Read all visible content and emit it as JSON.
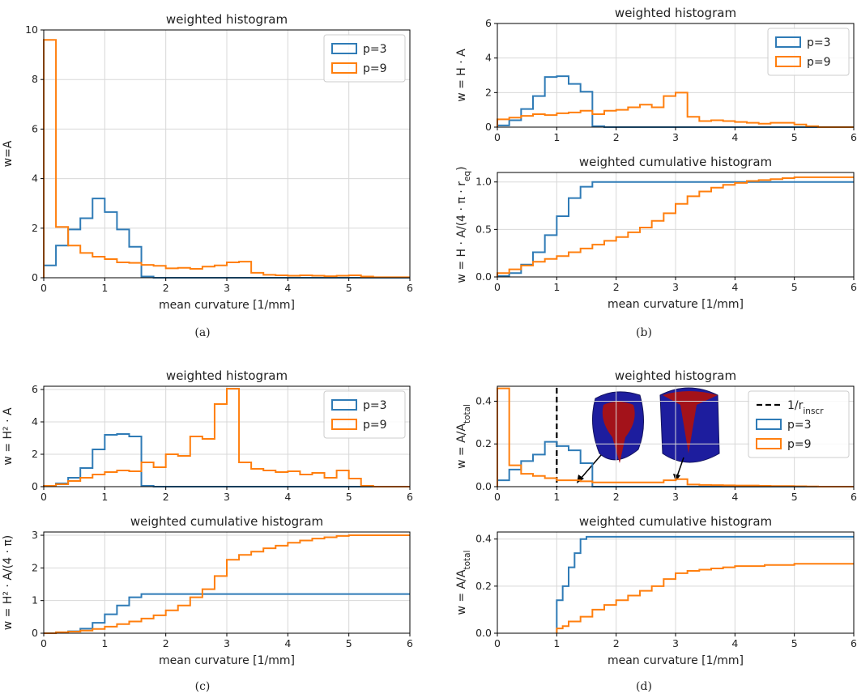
{
  "colors": {
    "p3": "#2f7bb6",
    "p9": "#ff7f0e",
    "grid": "#d8d8d8",
    "axis": "#000000"
  },
  "captions": [
    "(a)",
    "(b)",
    "(c)",
    "(d)"
  ],
  "chart_data": [
    {
      "id": "a",
      "type": "step",
      "title": "weighted histogram",
      "xlabel": "mean curvature [1/mm]",
      "ylabel": "w=A",
      "xlim": [
        0,
        6
      ],
      "ylim": [
        0,
        10
      ],
      "xticks": [
        0,
        1,
        2,
        3,
        4,
        5,
        6
      ],
      "yticks": [
        0,
        2,
        4,
        6,
        8,
        10
      ],
      "grid": true,
      "legend": "top-right",
      "series": [
        {
          "name": "p=3",
          "color": "p3",
          "edges": [
            0,
            0.2,
            0.4,
            0.6,
            0.8,
            1.0,
            1.2,
            1.4,
            1.6,
            1.8,
            6
          ],
          "values": [
            0.5,
            1.3,
            1.95,
            2.4,
            3.2,
            2.65,
            1.95,
            1.25,
            0.05,
            0
          ]
        },
        {
          "name": "p=9",
          "color": "p9",
          "edges": [
            0,
            0.2,
            0.4,
            0.6,
            0.8,
            1.0,
            1.2,
            1.4,
            1.6,
            1.8,
            2.0,
            2.2,
            2.4,
            2.6,
            2.8,
            3.0,
            3.2,
            3.4,
            3.6,
            3.8,
            4.0,
            4.2,
            4.4,
            4.6,
            4.8,
            5.0,
            5.2,
            5.4,
            6
          ],
          "values": [
            9.6,
            2.05,
            1.3,
            1.0,
            0.85,
            0.75,
            0.62,
            0.6,
            0.52,
            0.48,
            0.38,
            0.4,
            0.36,
            0.45,
            0.5,
            0.62,
            0.65,
            0.2,
            0.12,
            0.1,
            0.08,
            0.1,
            0.08,
            0.06,
            0.08,
            0.1,
            0.05,
            0.02
          ]
        }
      ]
    },
    {
      "id": "b1",
      "type": "step",
      "title": "weighted histogram",
      "xlabel": "",
      "ylabel": "w = H · A",
      "xlim": [
        0,
        6
      ],
      "ylim": [
        0,
        6
      ],
      "xticks": [
        0,
        1,
        2,
        3,
        4,
        5,
        6
      ],
      "yticks": [
        0,
        2,
        4,
        6
      ],
      "grid": true,
      "legend": "top-right",
      "series": [
        {
          "name": "p=3",
          "color": "p3",
          "edges": [
            0,
            0.2,
            0.4,
            0.6,
            0.8,
            1.0,
            1.2,
            1.4,
            1.6,
            1.8,
            6
          ],
          "values": [
            0.1,
            0.4,
            1.05,
            1.8,
            2.9,
            2.95,
            2.5,
            2.05,
            0.05,
            0
          ]
        },
        {
          "name": "p=9",
          "color": "p9",
          "edges": [
            0,
            0.2,
            0.4,
            0.6,
            0.8,
            1.0,
            1.2,
            1.4,
            1.6,
            1.8,
            2.0,
            2.2,
            2.4,
            2.6,
            2.8,
            3.0,
            3.2,
            3.4,
            3.6,
            3.8,
            4.0,
            4.2,
            4.4,
            4.6,
            4.8,
            5.0,
            5.2,
            5.4,
            6
          ],
          "values": [
            0.45,
            0.55,
            0.65,
            0.75,
            0.7,
            0.8,
            0.85,
            0.95,
            0.75,
            0.95,
            1.0,
            1.15,
            1.3,
            1.15,
            1.8,
            2.0,
            0.6,
            0.35,
            0.4,
            0.35,
            0.3,
            0.25,
            0.2,
            0.25,
            0.25,
            0.15,
            0.05,
            0.0
          ]
        }
      ]
    },
    {
      "id": "b2",
      "type": "step",
      "title": "weighted cumulative histogram",
      "xlabel": "mean curvature [1/mm]",
      "ylabel": "w = H · A/(4 · π · r_eq)",
      "xlim": [
        0,
        6
      ],
      "ylim": [
        0,
        1.1
      ],
      "xticks": [
        0,
        1,
        2,
        3,
        4,
        5,
        6
      ],
      "yticks": [
        0,
        0.5,
        1.0
      ],
      "ytick_labels": [
        "0.0",
        "0.5",
        "1.0"
      ],
      "grid": true,
      "series": [
        {
          "name": "p=3",
          "color": "p3",
          "edges": [
            0,
            0.2,
            0.4,
            0.6,
            0.8,
            1.0,
            1.2,
            1.4,
            1.6,
            1.8,
            6
          ],
          "values": [
            0.01,
            0.04,
            0.13,
            0.26,
            0.44,
            0.64,
            0.83,
            0.95,
            1.0,
            1.0
          ]
        },
        {
          "name": "p=9",
          "color": "p9",
          "edges": [
            0,
            0.2,
            0.4,
            0.6,
            0.8,
            1.0,
            1.2,
            1.4,
            1.6,
            1.8,
            2.0,
            2.2,
            2.4,
            2.6,
            2.8,
            3.0,
            3.2,
            3.4,
            3.6,
            3.8,
            4.0,
            4.2,
            4.4,
            4.6,
            4.8,
            5.0,
            5.2,
            5.4,
            6
          ],
          "values": [
            0.04,
            0.08,
            0.12,
            0.16,
            0.19,
            0.22,
            0.26,
            0.3,
            0.34,
            0.38,
            0.42,
            0.47,
            0.52,
            0.59,
            0.67,
            0.77,
            0.85,
            0.9,
            0.94,
            0.97,
            0.99,
            1.01,
            1.02,
            1.03,
            1.04,
            1.05,
            1.05,
            1.05
          ]
        }
      ]
    },
    {
      "id": "c1",
      "type": "step",
      "title": "weighted  histogram",
      "xlabel": "",
      "ylabel": "w = H² · A",
      "xlim": [
        0,
        6
      ],
      "ylim": [
        0,
        6.2
      ],
      "xticks": [
        0,
        1,
        2,
        3,
        4,
        5,
        6
      ],
      "yticks": [
        0,
        2,
        4,
        6
      ],
      "grid": true,
      "legend": "top-right",
      "series": [
        {
          "name": "p=3",
          "color": "p3",
          "edges": [
            0,
            0.2,
            0.4,
            0.6,
            0.8,
            1.0,
            1.2,
            1.4,
            1.6,
            1.8,
            6
          ],
          "values": [
            0.05,
            0.2,
            0.55,
            1.15,
            2.3,
            3.2,
            3.25,
            3.1,
            0.05,
            0
          ]
        },
        {
          "name": "p=9",
          "color": "p9",
          "edges": [
            0,
            0.2,
            0.4,
            0.6,
            0.8,
            1.0,
            1.2,
            1.4,
            1.6,
            1.8,
            2.0,
            2.2,
            2.4,
            2.6,
            2.8,
            3.0,
            3.2,
            3.4,
            3.6,
            3.8,
            4.0,
            4.2,
            4.4,
            4.6,
            4.8,
            5.0,
            5.2,
            5.4,
            6
          ],
          "values": [
            0.05,
            0.15,
            0.35,
            0.55,
            0.75,
            0.9,
            1.0,
            0.95,
            1.5,
            1.2,
            2.0,
            1.9,
            3.1,
            2.95,
            5.1,
            6.05,
            1.5,
            1.1,
            1.0,
            0.9,
            0.95,
            0.75,
            0.85,
            0.55,
            1.0,
            0.5,
            0.05,
            0.0
          ]
        }
      ]
    },
    {
      "id": "c2",
      "type": "step",
      "title": "weighted cumulative histogram",
      "xlabel": "mean curvature [1/mm]",
      "ylabel": "w = H² · A/(4 · π)",
      "xlim": [
        0,
        6
      ],
      "ylim": [
        0,
        3.1
      ],
      "xticks": [
        0,
        1,
        2,
        3,
        4,
        5,
        6
      ],
      "yticks": [
        0,
        1,
        2,
        3
      ],
      "grid": true,
      "series": [
        {
          "name": "p=3",
          "color": "p3",
          "edges": [
            0,
            0.2,
            0.4,
            0.6,
            0.8,
            1.0,
            1.2,
            1.4,
            1.6,
            1.8,
            6
          ],
          "values": [
            0.0,
            0.02,
            0.06,
            0.14,
            0.32,
            0.58,
            0.85,
            1.1,
            1.2,
            1.2
          ]
        },
        {
          "name": "p=9",
          "color": "p9",
          "edges": [
            0,
            0.2,
            0.4,
            0.6,
            0.8,
            1.0,
            1.2,
            1.4,
            1.6,
            1.8,
            2.0,
            2.2,
            2.4,
            2.6,
            2.8,
            3.0,
            3.2,
            3.4,
            3.6,
            3.8,
            4.0,
            4.2,
            4.4,
            4.6,
            4.8,
            5.0,
            5.2,
            5.4,
            6
          ],
          "values": [
            0.0,
            0.03,
            0.05,
            0.08,
            0.13,
            0.2,
            0.28,
            0.36,
            0.45,
            0.55,
            0.7,
            0.85,
            1.1,
            1.35,
            1.75,
            2.25,
            2.4,
            2.5,
            2.6,
            2.68,
            2.77,
            2.84,
            2.9,
            2.94,
            2.98,
            3.0,
            3.0,
            3.0
          ]
        }
      ]
    },
    {
      "id": "d1",
      "type": "step",
      "title": "weighted  histogram",
      "xlabel": "",
      "ylabel": "w = A/A_total",
      "xlim": [
        0,
        6
      ],
      "ylim": [
        0,
        0.47
      ],
      "xticks": [
        0,
        1,
        2,
        3,
        4,
        5,
        6
      ],
      "yticks": [
        0,
        0.2,
        0.4
      ],
      "ytick_labels": [
        "0.0",
        "0.2",
        "0.4"
      ],
      "grid": true,
      "legend": "top-right",
      "vline": {
        "x": 1,
        "label": "1/r_inscr"
      },
      "series": [
        {
          "name": "p=3",
          "color": "p3",
          "edges": [
            0,
            0.2,
            0.4,
            0.6,
            0.8,
            1.0,
            1.2,
            1.4,
            1.6,
            1.8,
            6
          ],
          "values": [
            0.03,
            0.08,
            0.12,
            0.15,
            0.21,
            0.19,
            0.17,
            0.11,
            0.0,
            0.0
          ]
        },
        {
          "name": "p=9",
          "color": "p9",
          "edges": [
            0,
            0.2,
            0.4,
            0.6,
            0.8,
            1.0,
            1.2,
            1.4,
            1.6,
            1.8,
            2.0,
            2.2,
            2.4,
            2.6,
            2.8,
            3.0,
            3.2,
            3.4,
            3.6,
            3.8,
            4.0,
            4.2,
            4.4,
            4.6,
            4.8,
            5.0,
            5.2,
            5.4,
            6
          ],
          "values": [
            0.46,
            0.1,
            0.06,
            0.05,
            0.04,
            0.03,
            0.03,
            0.025,
            0.02,
            0.02,
            0.02,
            0.02,
            0.02,
            0.02,
            0.03,
            0.035,
            0.01,
            0.008,
            0.007,
            0.006,
            0.005,
            0.005,
            0.004,
            0.003,
            0.003,
            0.002,
            0.001,
            0.0
          ]
        }
      ]
    },
    {
      "id": "d2",
      "type": "step",
      "title": "weighted cumulative histogram",
      "xlabel": "mean curvature [1/mm]",
      "ylabel": "w = A/A_total",
      "xlim": [
        0,
        6
      ],
      "ylim": [
        0,
        0.43
      ],
      "xticks": [
        0,
        1,
        2,
        3,
        4,
        5,
        6
      ],
      "yticks": [
        0,
        0.2,
        0.4
      ],
      "ytick_labels": [
        "0.0",
        "0.2",
        "0.4"
      ],
      "grid": true,
      "series": [
        {
          "name": "p=3",
          "color": "p3",
          "edges": [
            1.0,
            1.1,
            1.2,
            1.3,
            1.4,
            1.5,
            6
          ],
          "values": [
            0.14,
            0.2,
            0.28,
            0.34,
            0.4,
            0.41
          ]
        },
        {
          "name": "p=9",
          "color": "p9",
          "edges": [
            1.0,
            1.1,
            1.2,
            1.4,
            1.6,
            1.8,
            2.0,
            2.2,
            2.4,
            2.6,
            2.8,
            3.0,
            3.2,
            3.4,
            3.6,
            3.8,
            4.0,
            4.5,
            5.0,
            6
          ],
          "values": [
            0.02,
            0.03,
            0.05,
            0.07,
            0.1,
            0.12,
            0.14,
            0.16,
            0.18,
            0.2,
            0.23,
            0.255,
            0.265,
            0.27,
            0.275,
            0.28,
            0.285,
            0.29,
            0.295
          ]
        }
      ]
    }
  ]
}
